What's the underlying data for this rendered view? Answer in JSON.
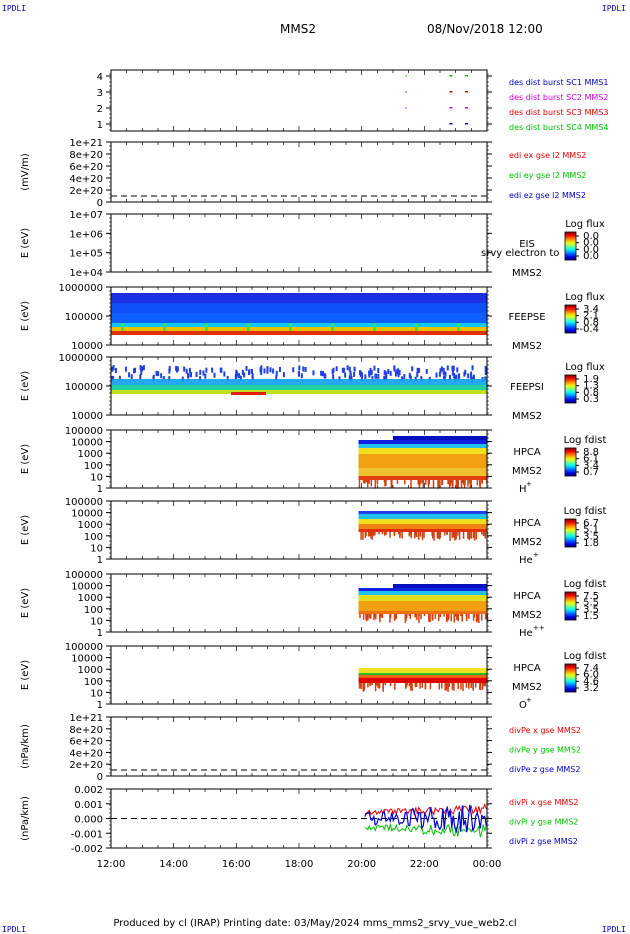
{
  "corners": {
    "tl": "IPDLI",
    "tr": "IPDLI",
    "bl": "IPDLI",
    "br": "IPDLI"
  },
  "header": {
    "spacecraft": "MMS2",
    "datetime": "08/Nov/2018 12:00"
  },
  "footer": {
    "text": "Produced by cl (IRAP)   Printing date: 03/May/2024   mms_mms2_srvy_vue_web2.cl"
  },
  "chart_data": {
    "type": "multi-panel time series (stacked spectrograms and line plots)",
    "x": {
      "ticks": [
        "12:00",
        "14:00",
        "16:00",
        "18:00",
        "20:00",
        "22:00",
        "00:00"
      ],
      "range": [
        "12:00",
        "00:00"
      ]
    },
    "panels": [
      {
        "id": "des",
        "type": "availability",
        "y_ticks": [
          "4",
          "3",
          "2",
          "1"
        ],
        "legend": [
          {
            "label": "des dist burst SC1 MMS1",
            "color": "#0000c0"
          },
          {
            "label": "des dist burst SC2 MMS2",
            "color": "#d000d0"
          },
          {
            "label": "des dist burst SC3 MMS3",
            "color": "#e00000"
          },
          {
            "label": "des dist burst SC4 MMS4",
            "color": "#00c000"
          }
        ]
      },
      {
        "id": "edi",
        "type": "line",
        "ylabel": "(mV/m)",
        "y_ticks": [
          "1e+21",
          "8e+20",
          "6e+20",
          "4e+20",
          "2e+20",
          "0"
        ],
        "legend": [
          {
            "label": "edi ex gse l2 MMS2",
            "color": "#e00000"
          },
          {
            "label": "edi ey gse l2 MMS2",
            "color": "#00c000"
          },
          {
            "label": "edi ez gse l2 MMS2",
            "color": "#0000c0"
          }
        ]
      },
      {
        "id": "eis",
        "type": "spectrogram",
        "ylabel": "E (eV)",
        "y_ticks": [
          "1e+07",
          "1e+06",
          "1e+05",
          "1e+04"
        ],
        "instrument": "EIS",
        "overlay": "srvy electron to",
        "sc": "MMS2",
        "colorbar": {
          "title": "Log flux",
          "ticks": [
            "0.0",
            "0.0",
            "0.0",
            "0.0"
          ]
        }
      },
      {
        "id": "feepse",
        "type": "spectrogram",
        "ylabel": "E (eV)",
        "y_ticks": [
          "1000000",
          "100000",
          "10000"
        ],
        "instrument": "FEEPSE",
        "sc": "MMS2",
        "colorbar": {
          "title": "Log flux",
          "ticks": [
            "3.4",
            "2.1",
            "0.8",
            "-0.4"
          ]
        }
      },
      {
        "id": "feepsi",
        "type": "spectrogram",
        "ylabel": "E (eV)",
        "y_ticks": [
          "1000000",
          "100000",
          "10000"
        ],
        "instrument": "FEEPSI",
        "sc": "MMS2",
        "colorbar": {
          "title": "Log flux",
          "ticks": [
            "1.9",
            "1.3",
            "0.8",
            "0.3"
          ]
        }
      },
      {
        "id": "hpca_h",
        "type": "spectrogram",
        "ylabel": "E (eV)",
        "y_ticks": [
          "100000",
          "10000",
          "1000",
          "100",
          "10",
          "1"
        ],
        "instrument": "HPCA",
        "sc": "MMS2",
        "species": "H",
        "species_sup": "+",
        "colorbar": {
          "title": "Log fdist",
          "ticks": [
            "8.8",
            "6.1",
            "3.4",
            "0.7"
          ]
        }
      },
      {
        "id": "hpca_he",
        "type": "spectrogram",
        "ylabel": "E (eV)",
        "y_ticks": [
          "100000",
          "10000",
          "1000",
          "100",
          "10",
          "1"
        ],
        "instrument": "HPCA",
        "sc": "MMS2",
        "species": "He",
        "species_sup": "+",
        "colorbar": {
          "title": "Log fdist",
          "ticks": [
            "6.7",
            "5.1",
            "3.5",
            "1.8"
          ]
        }
      },
      {
        "id": "hpca_hepp",
        "type": "spectrogram",
        "ylabel": "E (eV)",
        "y_ticks": [
          "100000",
          "10000",
          "1000",
          "100",
          "10",
          "1"
        ],
        "instrument": "HPCA",
        "sc": "MMS2",
        "species": "He",
        "species_sup": "++",
        "colorbar": {
          "title": "Log fdist",
          "ticks": [
            "7.5",
            "5.5",
            "3.5",
            "1.5"
          ]
        }
      },
      {
        "id": "hpca_o",
        "type": "spectrogram",
        "ylabel": "E (eV)",
        "y_ticks": [
          "100000",
          "10000",
          "1000",
          "100",
          "10",
          "1"
        ],
        "instrument": "HPCA",
        "sc": "MMS2",
        "species": "O",
        "species_sup": "+",
        "colorbar": {
          "title": "Log fdist",
          "ticks": [
            "7.4",
            "6.0",
            "4.6",
            "3.2"
          ]
        }
      },
      {
        "id": "divpe",
        "type": "line",
        "ylabel": "(nPa/km)",
        "y_ticks": [
          "1e+21",
          "8e+20",
          "6e+20",
          "4e+20",
          "2e+20",
          "0"
        ],
        "legend": [
          {
            "label": "divPe x gse MMS2",
            "color": "#e00000"
          },
          {
            "label": "divPe y gse MMS2",
            "color": "#00c000"
          },
          {
            "label": "divPe z gse MMS2",
            "color": "#0000c0"
          }
        ]
      },
      {
        "id": "divpi",
        "type": "line",
        "ylabel": "(nPa/km)",
        "y_ticks": [
          "0.002",
          "0.001",
          "0.000",
          "-0.001",
          "-0.002"
        ],
        "legend": [
          {
            "label": "divPi x gse MMS2",
            "color": "#e00000"
          },
          {
            "label": "divPi y gse MMS2",
            "color": "#00c000"
          },
          {
            "label": "divPi z gse MMS2",
            "color": "#0000c0"
          }
        ]
      }
    ]
  }
}
